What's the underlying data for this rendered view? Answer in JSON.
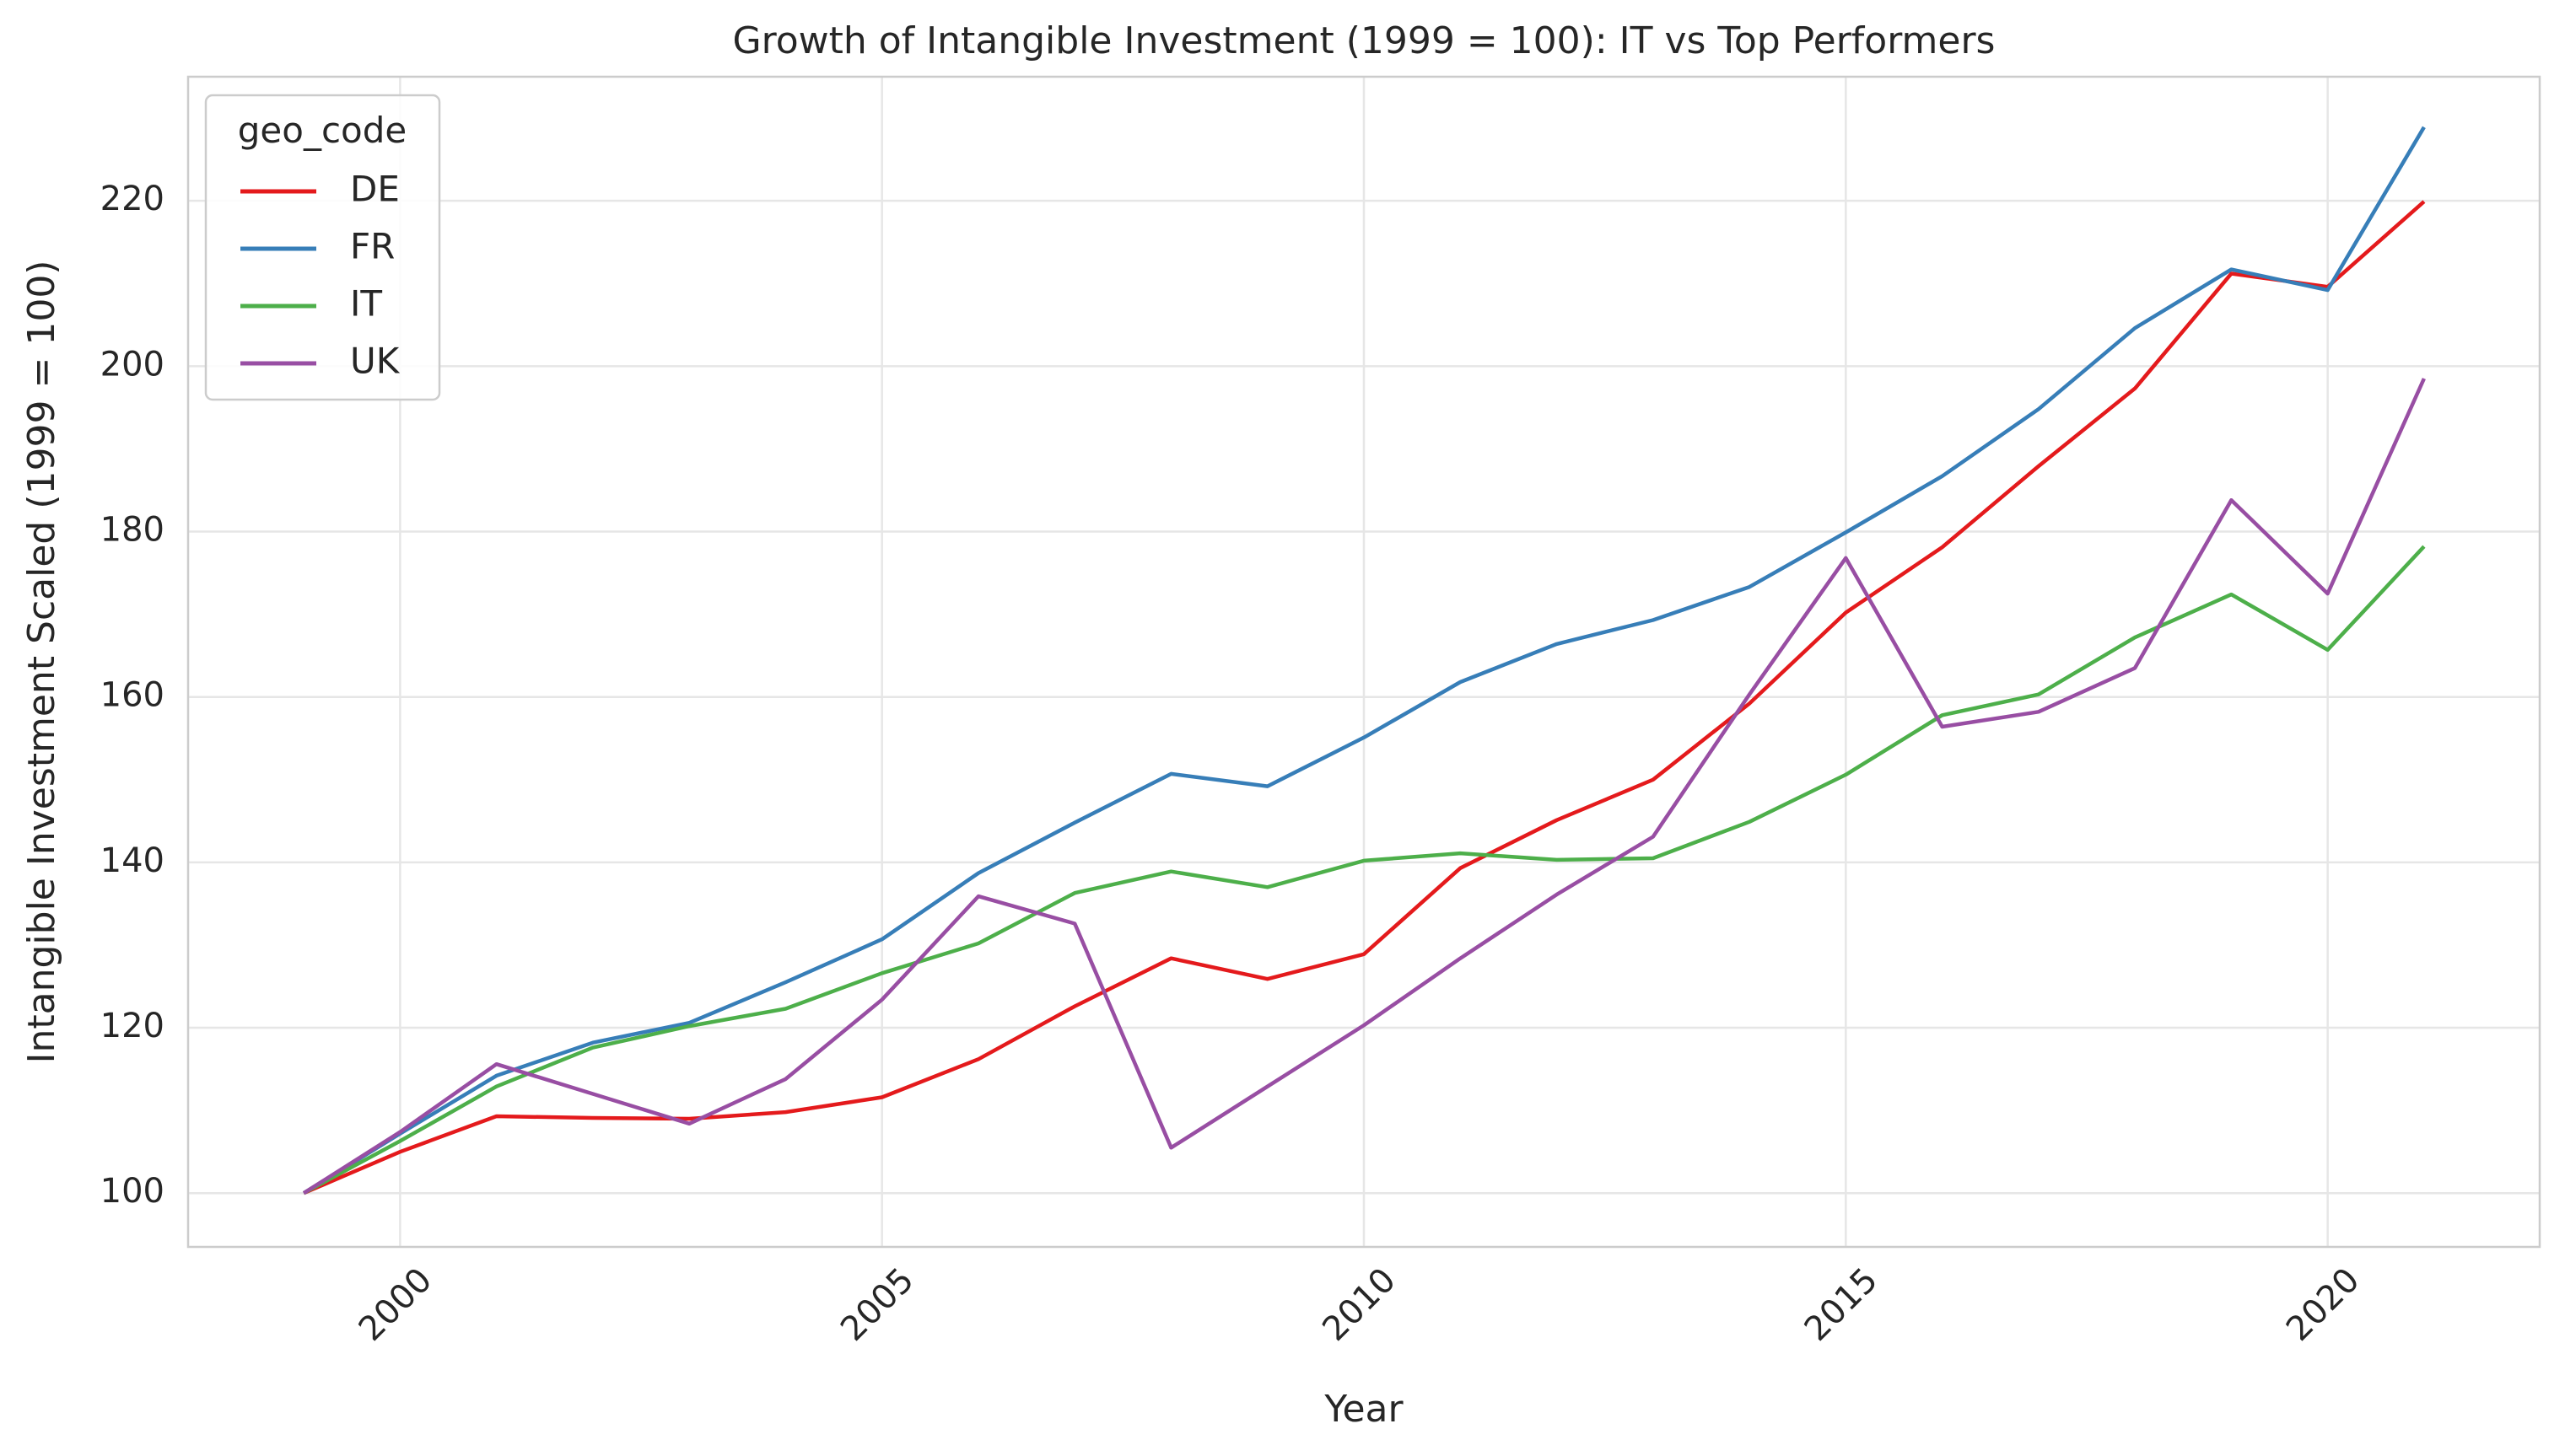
{
  "chart_data": {
    "type": "line",
    "title": "Growth of Intangible Investment (1999 = 100): IT vs Top Performers",
    "xlabel": "Year",
    "ylabel": "Intangible Investment Scaled (1999 = 100)",
    "xlim": [
      1997.8,
      2022.2
    ],
    "ylim": [
      93.5,
      235
    ],
    "x_ticks": [
      2000,
      2005,
      2010,
      2015,
      2020
    ],
    "y_ticks": [
      100,
      120,
      140,
      160,
      180,
      200,
      220
    ],
    "grid": true,
    "legend": {
      "title": "geo_code",
      "placement": "top-left"
    },
    "x": [
      1999,
      2000,
      2001,
      2002,
      2003,
      2004,
      2005,
      2006,
      2007,
      2008,
      2009,
      2010,
      2011,
      2012,
      2013,
      2014,
      2015,
      2016,
      2017,
      2018,
      2019,
      2020,
      2021
    ],
    "series": [
      {
        "name": "DE",
        "color": "#e41a1c",
        "values": [
          100,
          105,
          109.3,
          109.1,
          109.0,
          109.8,
          111.6,
          116.2,
          122.6,
          128.4,
          125.9,
          128.9,
          139.3,
          145.1,
          150.0,
          159.2,
          170.2,
          178.1,
          187.9,
          197.3,
          211.2,
          209.6,
          219.9
        ]
      },
      {
        "name": "FR",
        "color": "#377eb8",
        "values": [
          100,
          107.2,
          114.2,
          118.2,
          120.6,
          125.5,
          130.7,
          138.7,
          144.8,
          150.7,
          149.2,
          155.1,
          161.8,
          166.4,
          169.3,
          173.3,
          179.9,
          186.7,
          194.8,
          204.6,
          211.7,
          209.2,
          228.9
        ]
      },
      {
        "name": "IT",
        "color": "#4daf4a",
        "values": [
          100,
          106.3,
          112.9,
          117.6,
          120.2,
          122.3,
          126.6,
          130.2,
          136.3,
          138.9,
          137.0,
          140.2,
          141.1,
          140.3,
          140.5,
          144.9,
          150.6,
          157.8,
          160.3,
          167.2,
          172.4,
          165.7,
          178.2
        ]
      },
      {
        "name": "UK",
        "color": "#984ea3",
        "values": [
          100,
          107.4,
          115.6,
          112.0,
          108.4,
          113.8,
          123.4,
          135.9,
          132.6,
          105.5,
          112.9,
          120.3,
          128.4,
          136.1,
          143.1,
          160.3,
          176.8,
          156.4,
          158.2,
          163.5,
          183.8,
          172.5,
          198.5
        ]
      }
    ]
  }
}
